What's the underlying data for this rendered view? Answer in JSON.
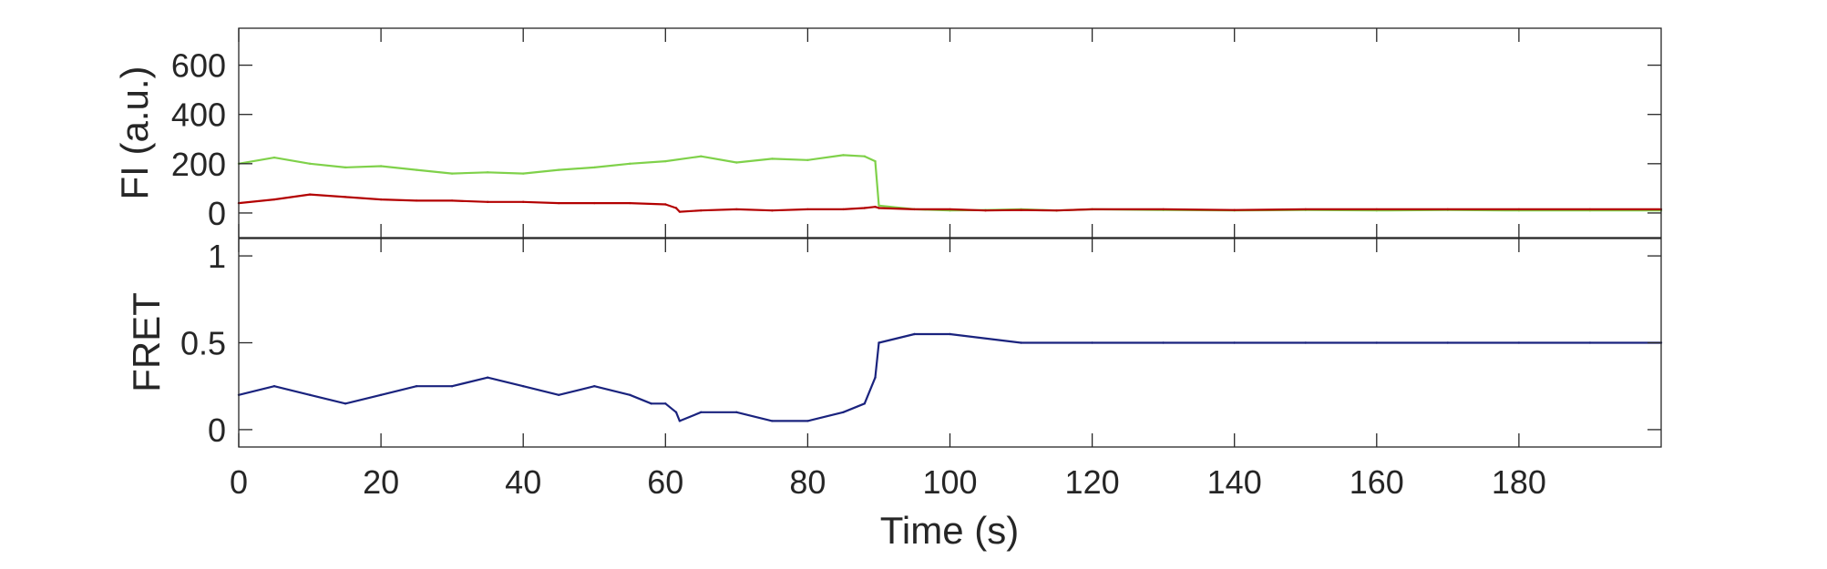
{
  "chart_data": [
    {
      "type": "line",
      "ylabel": "FI (a.u.)",
      "xlim": [
        0,
        200
      ],
      "ylim": [
        -100,
        750
      ],
      "yticks": [
        0,
        200,
        400,
        600
      ],
      "ytick_labels": [
        "0",
        "200",
        "400",
        "600"
      ],
      "grid": false,
      "legend": "none",
      "series": [
        {
          "color": "#7fd14a",
          "points": [
            [
              0,
              200
            ],
            [
              5,
              225
            ],
            [
              10,
              200
            ],
            [
              15,
              185
            ],
            [
              20,
              190
            ],
            [
              25,
              175
            ],
            [
              30,
              160
            ],
            [
              35,
              165
            ],
            [
              40,
              160
            ],
            [
              45,
              175
            ],
            [
              50,
              185
            ],
            [
              55,
              200
            ],
            [
              60,
              210
            ],
            [
              65,
              230
            ],
            [
              70,
              205
            ],
            [
              75,
              220
            ],
            [
              80,
              215
            ],
            [
              85,
              235
            ],
            [
              88,
              230
            ],
            [
              89.5,
              210
            ],
            [
              90,
              30
            ],
            [
              95,
              15
            ],
            [
              100,
              10
            ],
            [
              105,
              12
            ],
            [
              110,
              15
            ],
            [
              115,
              10
            ],
            [
              120,
              15
            ],
            [
              130,
              12
            ],
            [
              140,
              10
            ],
            [
              150,
              12
            ],
            [
              160,
              10
            ],
            [
              170,
              12
            ],
            [
              180,
              10
            ],
            [
              190,
              10
            ],
            [
              200,
              10
            ]
          ]
        },
        {
          "color": "#b30000",
          "points": [
            [
              0,
              40
            ],
            [
              5,
              55
            ],
            [
              10,
              75
            ],
            [
              15,
              65
            ],
            [
              20,
              55
            ],
            [
              25,
              50
            ],
            [
              30,
              50
            ],
            [
              35,
              45
            ],
            [
              40,
              45
            ],
            [
              45,
              40
            ],
            [
              50,
              40
            ],
            [
              55,
              40
            ],
            [
              60,
              35
            ],
            [
              61.5,
              20
            ],
            [
              62,
              5
            ],
            [
              65,
              10
            ],
            [
              70,
              15
            ],
            [
              75,
              10
            ],
            [
              80,
              15
            ],
            [
              85,
              15
            ],
            [
              88,
              20
            ],
            [
              89.5,
              25
            ],
            [
              90,
              20
            ],
            [
              95,
              15
            ],
            [
              100,
              15
            ],
            [
              105,
              10
            ],
            [
              110,
              12
            ],
            [
              115,
              10
            ],
            [
              120,
              15
            ],
            [
              130,
              15
            ],
            [
              140,
              12
            ],
            [
              150,
              15
            ],
            [
              160,
              15
            ],
            [
              170,
              15
            ],
            [
              180,
              15
            ],
            [
              190,
              15
            ],
            [
              200,
              15
            ]
          ]
        }
      ]
    },
    {
      "type": "line",
      "ylabel": "FRET",
      "xlabel": "Time (s)",
      "xlim": [
        0,
        200
      ],
      "ylim": [
        -0.1,
        1.1
      ],
      "xticks": [
        0,
        20,
        40,
        60,
        80,
        100,
        120,
        140,
        160,
        180
      ],
      "xtick_labels": [
        "0",
        "20",
        "40",
        "60",
        "80",
        "100",
        "120",
        "140",
        "160",
        "180"
      ],
      "yticks": [
        0,
        0.5,
        1
      ],
      "ytick_labels": [
        "0",
        "0.5",
        "1"
      ],
      "grid": false,
      "legend": "none",
      "series": [
        {
          "color": "#1a237e",
          "points": [
            [
              0,
              0.2
            ],
            [
              5,
              0.25
            ],
            [
              10,
              0.2
            ],
            [
              15,
              0.15
            ],
            [
              20,
              0.2
            ],
            [
              25,
              0.25
            ],
            [
              30,
              0.25
            ],
            [
              35,
              0.3
            ],
            [
              40,
              0.25
            ],
            [
              45,
              0.2
            ],
            [
              50,
              0.25
            ],
            [
              55,
              0.2
            ],
            [
              58,
              0.15
            ],
            [
              60,
              0.15
            ],
            [
              61.5,
              0.1
            ],
            [
              62,
              0.05
            ],
            [
              65,
              0.1
            ],
            [
              70,
              0.1
            ],
            [
              75,
              0.05
            ],
            [
              80,
              0.05
            ],
            [
              85,
              0.1
            ],
            [
              88,
              0.15
            ],
            [
              89.5,
              0.3
            ],
            [
              90,
              0.5
            ],
            [
              95,
              0.55
            ],
            [
              100,
              0.55
            ],
            [
              110,
              0.5
            ],
            [
              120,
              0.5
            ],
            [
              130,
              0.5
            ],
            [
              140,
              0.5
            ],
            [
              150,
              0.5
            ],
            [
              160,
              0.5
            ],
            [
              170,
              0.5
            ],
            [
              180,
              0.5
            ],
            [
              190,
              0.5
            ],
            [
              200,
              0.5
            ]
          ]
        }
      ]
    }
  ]
}
